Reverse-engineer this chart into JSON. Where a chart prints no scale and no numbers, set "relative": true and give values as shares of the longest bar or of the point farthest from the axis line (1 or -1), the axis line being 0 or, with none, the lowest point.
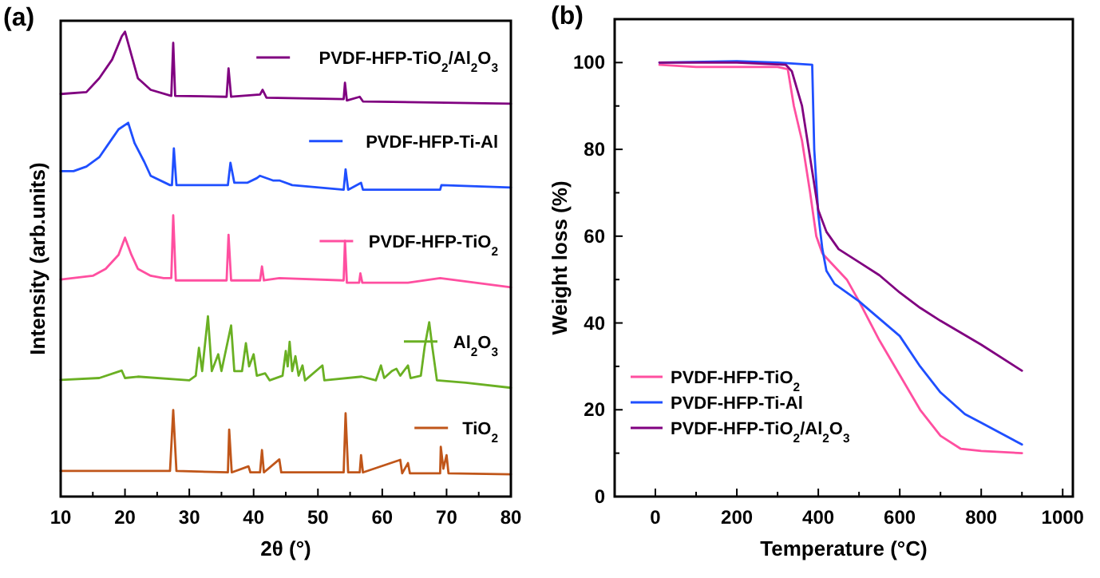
{
  "chart_data": [
    {
      "type": "line",
      "relative": true,
      "annotations": [
        "(a)"
      ],
      "xlabel": "2θ (°)",
      "ylabel": "Intensity (arb.units)",
      "xlim": [
        10,
        80
      ],
      "xticks": [
        10,
        {
          "value": 15,
          "label": null
        },
        20,
        {
          "value": 25,
          "label": null
        },
        30,
        {
          "value": 35,
          "label": null
        },
        40,
        {
          "value": 45,
          "label": null
        },
        50,
        {
          "value": 55,
          "label": null
        },
        60,
        {
          "value": 65,
          "label": null
        },
        70,
        {
          "value": 75,
          "label": null
        },
        80
      ],
      "legend": "right",
      "tick_labels": "x",
      "series": [
        {
          "name": "PVDF-HFP-TiO$_{2}$/Al$_{2}$O$_{3}$",
          "color": "#800080",
          "x": [
            10,
            14,
            16,
            18,
            19.5,
            20,
            21,
            22,
            24,
            27.2,
            27.5,
            27.8,
            35.8,
            36.1,
            36.5,
            41,
            41.4,
            42,
            54,
            54.2,
            54.5,
            56.5,
            57,
            80
          ],
          "values": [
            0.866,
            0.87,
            0.9,
            0.94,
            0.99,
            1,
            0.95,
            0.9,
            0.875,
            0.862,
            0.976,
            0.862,
            0.86,
            0.921,
            0.86,
            0.865,
            0.875,
            0.858,
            0.855,
            0.89,
            0.852,
            0.86,
            0.85,
            0.845
          ]
        },
        {
          "name": "PVDF-HFP-Ti-Al",
          "color": "#1f4fff",
          "x": [
            10,
            12,
            14,
            16,
            18,
            19,
            20.5,
            21.5,
            23,
            24,
            27,
            27.3,
            27.6,
            28,
            32,
            36,
            36.4,
            37,
            39,
            40.5,
            41,
            43,
            44,
            46,
            54,
            54.3,
            54.7,
            56.7,
            57,
            69,
            69.2,
            80
          ],
          "values": [
            0.7,
            0.7,
            0.71,
            0.73,
            0.77,
            0.79,
            0.804,
            0.76,
            0.72,
            0.69,
            0.67,
            0.67,
            0.749,
            0.67,
            0.67,
            0.67,
            0.718,
            0.675,
            0.675,
            0.685,
            0.69,
            0.68,
            0.68,
            0.67,
            0.66,
            0.704,
            0.66,
            0.675,
            0.66,
            0.66,
            0.67,
            0.665
          ]
        },
        {
          "name": "PVDF-HFP-TiO$_{2}$",
          "color": "#ff4fa0",
          "x": [
            10,
            15,
            17,
            19,
            20,
            21,
            22,
            24,
            26,
            27.2,
            27.5,
            27.9,
            35.8,
            36.1,
            36.5,
            41,
            41.3,
            41.6,
            44,
            54,
            54.2,
            54.5,
            56.4,
            56.6,
            56.9,
            62.8,
            64,
            69,
            80
          ],
          "values": [
            0.467,
            0.475,
            0.49,
            0.52,
            0.557,
            0.52,
            0.49,
            0.475,
            0.47,
            0.47,
            0.605,
            0.465,
            0.465,
            0.563,
            0.465,
            0.465,
            0.495,
            0.465,
            0.47,
            0.465,
            0.55,
            0.46,
            0.46,
            0.48,
            0.46,
            0.46,
            0.46,
            0.47,
            0.45
          ]
        },
        {
          "name": "Al$_{2}$O$_{3}$",
          "color": "#6ab023",
          "x": [
            10,
            16,
            19.5,
            20,
            22,
            30,
            31,
            31.5,
            32,
            32.9,
            33.5,
            34.5,
            35,
            36.5,
            37,
            38.2,
            38.8,
            39.3,
            40,
            40.5,
            41.8,
            42.5,
            44.5,
            45,
            45.3,
            45.6,
            46,
            46.5,
            47,
            47.6,
            48,
            50.7,
            51,
            56.8,
            59,
            59.8,
            60.3,
            61.5,
            62.2,
            62.8,
            64,
            64.4,
            66,
            66.6,
            67.3,
            67.8,
            68.5,
            73,
            80
          ],
          "values": [
            0.251,
            0.255,
            0.271,
            0.255,
            0.258,
            0.25,
            0.26,
            0.32,
            0.27,
            0.388,
            0.27,
            0.306,
            0.27,
            0.368,
            0.27,
            0.27,
            0.33,
            0.28,
            0.306,
            0.26,
            0.265,
            0.25,
            0.26,
            0.313,
            0.28,
            0.333,
            0.27,
            0.302,
            0.26,
            0.282,
            0.25,
            0.282,
            0.25,
            0.258,
            0.25,
            0.282,
            0.255,
            0.27,
            0.275,
            0.26,
            0.282,
            0.255,
            0.26,
            0.323,
            0.375,
            0.32,
            0.25,
            0.245,
            0.234
          ]
        },
        {
          "name": "TiO$_{2}$",
          "color": "#c0561a",
          "x": [
            10,
            27,
            27.5,
            28,
            36,
            36.2,
            36.6,
            39.2,
            39.5,
            41,
            41.3,
            41.6,
            44,
            44.3,
            54,
            54.3,
            54.7,
            56.5,
            56.7,
            57,
            62.8,
            63.1,
            64,
            64.3,
            69,
            69.1,
            69.5,
            70,
            70.3,
            80
          ],
          "values": [
            0.055,
            0.055,
            0.186,
            0.055,
            0.052,
            0.144,
            0.052,
            0.065,
            0.052,
            0.052,
            0.1,
            0.052,
            0.08,
            0.052,
            0.052,
            0.179,
            0.052,
            0.052,
            0.089,
            0.052,
            0.079,
            0.05,
            0.072,
            0.05,
            0.05,
            0.107,
            0.06,
            0.089,
            0.05,
            0.048
          ]
        }
      ]
    },
    {
      "type": "line",
      "annotations": [
        "(b)"
      ],
      "xlabel": "Temperature (°C)",
      "ylabel": "Weight loss (%)",
      "xlim": [
        -100,
        1025
      ],
      "ylim": [
        0,
        110
      ],
      "xticks": [
        0,
        {
          "value": 100,
          "label": null
        },
        200,
        {
          "value": 300,
          "label": null
        },
        400,
        {
          "value": 500,
          "label": null
        },
        600,
        {
          "value": 700,
          "label": null
        },
        800,
        {
          "value": 900,
          "label": null
        },
        1000
      ],
      "yticks": [
        0,
        {
          "value": 10,
          "label": null
        },
        20,
        {
          "value": 30,
          "label": null
        },
        40,
        {
          "value": 50,
          "label": null
        },
        60,
        {
          "value": 70,
          "label": null
        },
        80,
        {
          "value": 90,
          "label": null
        },
        100
      ],
      "legend": "bottom left",
      "series": [
        {
          "name": "PVDF-HFP-TiO$_{2}$",
          "color": "#ff4fa0",
          "x": [
            10,
            100,
            300,
            325,
            340,
            360,
            380,
            395,
            410,
            430,
            470,
            500,
            550,
            600,
            650,
            700,
            750,
            800,
            900
          ],
          "values": [
            99.5,
            99,
            99,
            98.5,
            90,
            82,
            70,
            60,
            56,
            54,
            50,
            45,
            36,
            28,
            20,
            14,
            11,
            10.5,
            10
          ]
        },
        {
          "name": "PVDF-HFP-Ti-Al",
          "color": "#1f4fff",
          "x": [
            10,
            200,
            300,
            385,
            390,
            400,
            410,
            420,
            440,
            500,
            550,
            600,
            650,
            700,
            760,
            800,
            900
          ],
          "values": [
            100,
            100.3,
            100,
            99.5,
            80,
            65,
            57,
            52,
            49,
            45,
            41,
            37,
            30,
            24,
            19,
            17,
            12
          ]
        },
        {
          "name": "PVDF-HFP-TiO$_{2}$/Al$_{2}$O$_{3}$",
          "color": "#800080",
          "x": [
            10,
            200,
            320,
            335,
            360,
            380,
            400,
            420,
            450,
            500,
            550,
            600,
            650,
            700,
            800,
            900
          ],
          "values": [
            100,
            100,
            99.5,
            98,
            90,
            78,
            66,
            61,
            57,
            54,
            51,
            47,
            43.5,
            40.5,
            35,
            29
          ]
        }
      ]
    }
  ]
}
